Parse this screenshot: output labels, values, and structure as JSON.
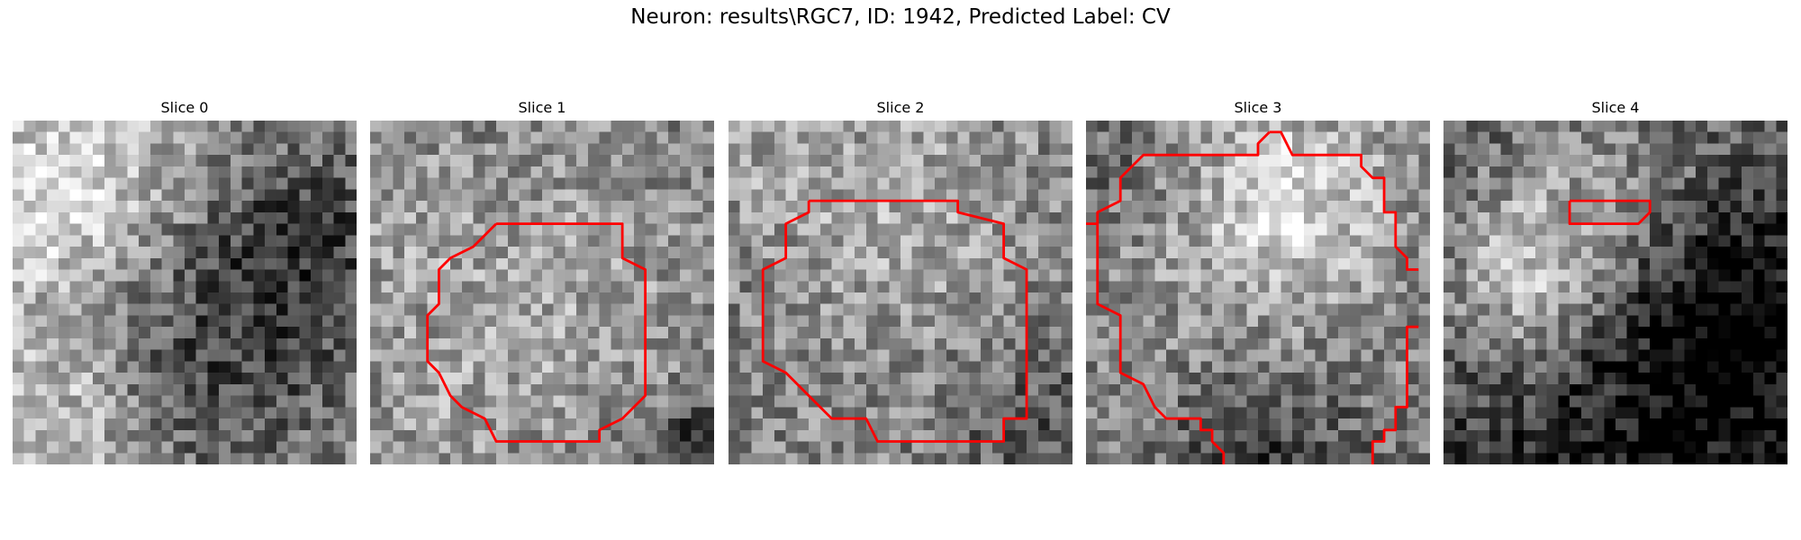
{
  "figure": {
    "title": "Neuron: results\\RGC7, ID: 1942, Predicted Label: CV",
    "grid_size": 30,
    "contour_color": "#ff0000",
    "colormap": "gray"
  },
  "slices": [
    {
      "title": "Slice 0",
      "seed": 11,
      "blobs": [
        [
          0.15,
          0.2,
          0.25,
          0.35
        ],
        [
          0.1,
          0.85,
          0.2,
          0.25
        ],
        [
          0.6,
          0.6,
          0.3,
          -0.3
        ],
        [
          0.85,
          0.3,
          0.2,
          -0.2
        ]
      ],
      "base": 0.55,
      "contour": []
    },
    {
      "title": "Slice 1",
      "seed": 23,
      "blobs": [
        [
          0.55,
          0.45,
          0.3,
          0.15
        ],
        [
          0.2,
          0.8,
          0.2,
          0.1
        ],
        [
          0.1,
          0.3,
          0.15,
          0.1
        ],
        [
          0.95,
          0.95,
          0.1,
          -0.4
        ]
      ],
      "base": 0.5,
      "contour": [
        [
          11,
          9
        ],
        [
          22,
          9
        ],
        [
          22,
          12
        ],
        [
          24,
          13
        ],
        [
          24,
          24
        ],
        [
          22,
          26
        ],
        [
          20,
          27
        ],
        [
          20,
          28
        ],
        [
          11,
          28
        ],
        [
          10,
          26
        ],
        [
          8,
          25
        ],
        [
          7,
          24
        ],
        [
          6,
          22
        ],
        [
          5,
          21
        ],
        [
          5,
          17
        ],
        [
          6,
          16
        ],
        [
          6,
          13
        ],
        [
          7,
          12
        ],
        [
          9,
          11
        ],
        [
          10,
          10
        ],
        [
          11,
          9
        ]
      ]
    },
    {
      "title": "Slice 2",
      "seed": 37,
      "blobs": [
        [
          0.5,
          0.2,
          0.25,
          0.15
        ],
        [
          0.5,
          0.6,
          0.35,
          0.05
        ],
        [
          0.1,
          0.1,
          0.15,
          0.1
        ],
        [
          0.9,
          0.9,
          0.2,
          -0.2
        ]
      ],
      "base": 0.5,
      "contour": [
        [
          7,
          7
        ],
        [
          20,
          7
        ],
        [
          20,
          8
        ],
        [
          24,
          9
        ],
        [
          24,
          12
        ],
        [
          26,
          13
        ],
        [
          26,
          26
        ],
        [
          24,
          26
        ],
        [
          24,
          28
        ],
        [
          13,
          28
        ],
        [
          12,
          26
        ],
        [
          9,
          26
        ],
        [
          8,
          25
        ],
        [
          6,
          23
        ],
        [
          5,
          22
        ],
        [
          3,
          21
        ],
        [
          3,
          13
        ],
        [
          5,
          12
        ],
        [
          5,
          9
        ],
        [
          7,
          8
        ],
        [
          7,
          7
        ]
      ]
    },
    {
      "title": "Slice 3",
      "seed": 51,
      "blobs": [
        [
          0.6,
          0.2,
          0.2,
          0.3
        ],
        [
          0.45,
          0.5,
          0.4,
          0.15
        ],
        [
          0.5,
          0.95,
          0.2,
          -0.3
        ],
        [
          0.05,
          0.1,
          0.1,
          -0.1
        ]
      ],
      "base": 0.45,
      "contour": [
        [
          16,
          1
        ],
        [
          17,
          1
        ],
        [
          18,
          3
        ],
        [
          24,
          3
        ],
        [
          24,
          4
        ],
        [
          25,
          5
        ],
        [
          26,
          5
        ],
        [
          26,
          8
        ],
        [
          27,
          8
        ],
        [
          27,
          11
        ],
        [
          28,
          12
        ],
        [
          28,
          13
        ],
        [
          29,
          13
        ]
      ]
    },
    {
      "title": "Slice 4",
      "seed": 67,
      "blobs": [
        [
          0.25,
          0.45,
          0.2,
          0.45
        ],
        [
          0.5,
          0.15,
          0.25,
          0.2
        ],
        [
          0.85,
          0.55,
          0.25,
          -0.35
        ],
        [
          0.5,
          0.85,
          0.35,
          -0.25
        ]
      ],
      "base": 0.35,
      "contour": [
        [
          11,
          7
        ],
        [
          18,
          7
        ],
        [
          18,
          8
        ],
        [
          17,
          9
        ],
        [
          11,
          9
        ],
        [
          11,
          7
        ]
      ]
    }
  ],
  "slice3_extra_contours": [
    [
      [
        16,
        1
      ],
      [
        15,
        2
      ],
      [
        15,
        3
      ],
      [
        5,
        3
      ],
      [
        4,
        4
      ],
      [
        3,
        5
      ],
      [
        3,
        7
      ],
      [
        1,
        8
      ],
      [
        1,
        9
      ],
      [
        0,
        9
      ],
      [
        1,
        9
      ],
      [
        1,
        16
      ],
      [
        3,
        17
      ],
      [
        3,
        22
      ],
      [
        5,
        23
      ],
      [
        6,
        25
      ],
      [
        7,
        26
      ],
      [
        10,
        26
      ],
      [
        10,
        27
      ],
      [
        11,
        27
      ],
      [
        11,
        28
      ],
      [
        12,
        29
      ],
      [
        12,
        30
      ]
    ],
    [
      [
        29,
        18
      ],
      [
        28,
        18
      ],
      [
        28,
        25
      ],
      [
        27,
        25
      ],
      [
        27,
        27
      ],
      [
        26,
        27
      ],
      [
        26,
        28
      ],
      [
        25,
        28
      ],
      [
        25,
        30
      ]
    ]
  ]
}
